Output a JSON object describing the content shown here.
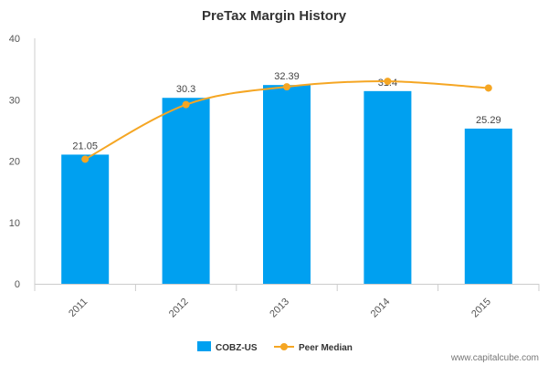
{
  "chart_data": {
    "type": "bar",
    "title": "PreTax Margin History",
    "categories": [
      "2011",
      "2012",
      "2013",
      "2014",
      "2015"
    ],
    "series": [
      {
        "name": "COBZ-US",
        "type": "bar",
        "values": [
          21.05,
          30.3,
          32.39,
          31.4,
          25.29
        ],
        "labels": [
          "21.05",
          "30.3",
          "32.39",
          "31.4",
          "25.29"
        ],
        "color": "#00a0f0"
      },
      {
        "name": "Peer Median",
        "type": "line",
        "values": [
          20.3,
          29.2,
          32.1,
          33.0,
          31.9
        ],
        "color": "#f5a623"
      }
    ],
    "y_ticks": [
      "0",
      "10",
      "20",
      "30",
      "40"
    ],
    "ylim": [
      0,
      40
    ],
    "grid": false,
    "legend_position": "bottom"
  },
  "watermark": "www.capitalcube.com"
}
